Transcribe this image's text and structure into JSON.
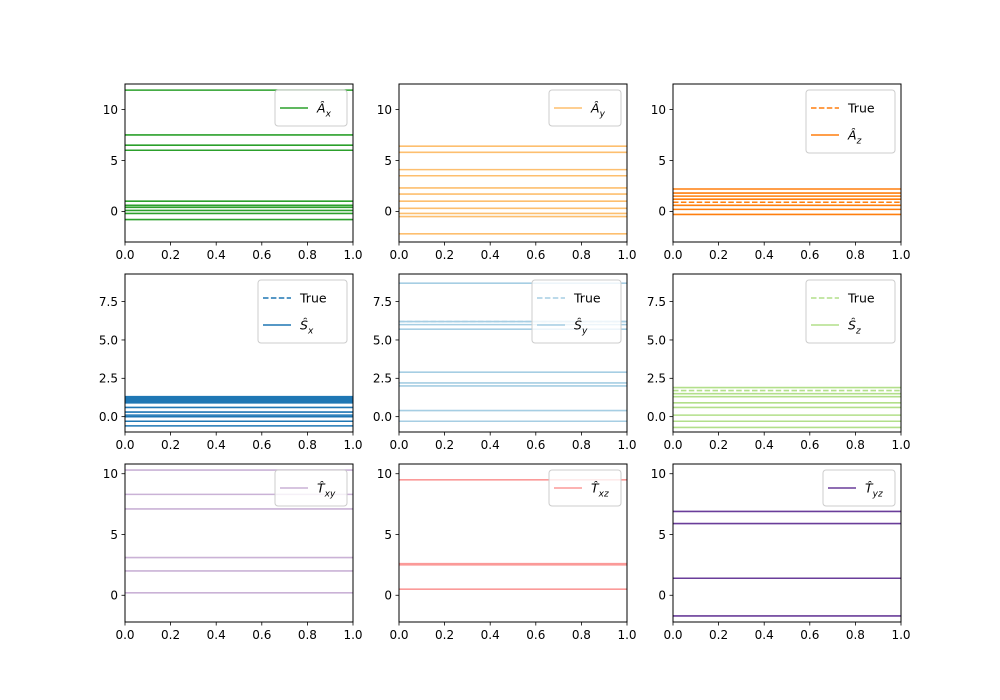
{
  "chart_data": [
    {
      "type": "line",
      "panel": "A_x",
      "xlim": [
        0.0,
        1.0
      ],
      "ylim": [
        -3.0,
        12.5
      ],
      "xticks": [
        "0.0",
        "0.2",
        "0.4",
        "0.6",
        "0.8",
        "1.0"
      ],
      "yticks": [
        "0",
        "5",
        "10"
      ],
      "ytick_values": [
        0,
        5,
        10
      ],
      "color": "#2ca02c",
      "legend": "top-right",
      "series": [
        {
          "name": "Â_x",
          "style": "solid",
          "values": [
            11.9,
            7.5,
            6.5,
            6.0,
            1.0,
            0.6,
            0.4,
            0.1,
            -0.2,
            -0.8
          ]
        }
      ]
    },
    {
      "type": "line",
      "panel": "A_y",
      "xlim": [
        0.0,
        1.0
      ],
      "ylim": [
        -3.0,
        12.5
      ],
      "xticks": [
        "0.0",
        "0.2",
        "0.4",
        "0.6",
        "0.8",
        "1.0"
      ],
      "yticks": [
        "0",
        "5",
        "10"
      ],
      "ytick_values": [
        0,
        5,
        10
      ],
      "color": "#fdbf6f",
      "legend": "top-right",
      "series": [
        {
          "name": "Â_y",
          "style": "solid",
          "values": [
            6.4,
            5.8,
            4.1,
            3.5,
            2.3,
            1.7,
            1.0,
            0.3,
            -0.2,
            -0.5,
            -2.2
          ]
        }
      ]
    },
    {
      "type": "line",
      "panel": "A_z",
      "xlim": [
        0.0,
        1.0
      ],
      "ylim": [
        -3.0,
        12.5
      ],
      "xticks": [
        "0.0",
        "0.2",
        "0.4",
        "0.6",
        "0.8",
        "1.0"
      ],
      "yticks": [
        "0",
        "5",
        "10"
      ],
      "ytick_values": [
        0,
        5,
        10
      ],
      "color": "#ff7f0e",
      "legend": "top-right",
      "series": [
        {
          "name": "True",
          "style": "dashed",
          "values": [
            0.9
          ]
        },
        {
          "name": "Â_z",
          "style": "solid",
          "values": [
            2.2,
            1.8,
            1.5,
            1.2,
            0.6,
            0.2,
            -0.3
          ]
        }
      ]
    },
    {
      "type": "line",
      "panel": "S_x",
      "xlim": [
        0.0,
        1.0
      ],
      "ylim": [
        -1.0,
        9.3
      ],
      "xticks": [
        "0.0",
        "0.2",
        "0.4",
        "0.6",
        "0.8",
        "1.0"
      ],
      "yticks": [
        "0.0",
        "2.5",
        "5.0",
        "7.5"
      ],
      "ytick_values": [
        0,
        2.5,
        5,
        7.5
      ],
      "color": "#1f77b4",
      "legend": "top-right",
      "series": [
        {
          "name": "True",
          "style": "dashed",
          "values": [
            1.0
          ]
        },
        {
          "name": "Ŝ_x",
          "style": "solid",
          "values": [
            1.3,
            1.2,
            1.1,
            1.0,
            0.9,
            0.6,
            0.3,
            0.1,
            0.0,
            -0.3,
            -0.6
          ]
        }
      ]
    },
    {
      "type": "line",
      "panel": "S_y",
      "xlim": [
        0.0,
        1.0
      ],
      "ylim": [
        -1.0,
        9.3
      ],
      "xticks": [
        "0.0",
        "0.2",
        "0.4",
        "0.6",
        "0.8",
        "1.0"
      ],
      "yticks": [
        "0.0",
        "2.5",
        "5.0",
        "7.5"
      ],
      "ytick_values": [
        0,
        2.5,
        5,
        7.5
      ],
      "color": "#a6cee3",
      "legend": "top-right",
      "series": [
        {
          "name": "True",
          "style": "dashed",
          "values": [
            6.2
          ]
        },
        {
          "name": "Ŝ_y",
          "style": "solid",
          "values": [
            8.7,
            6.2,
            6.0,
            5.7,
            2.9,
            2.2,
            2.0,
            0.4,
            -0.3
          ]
        }
      ]
    },
    {
      "type": "line",
      "panel": "S_z",
      "xlim": [
        0.0,
        1.0
      ],
      "ylim": [
        -1.0,
        9.3
      ],
      "xticks": [
        "0.0",
        "0.2",
        "0.4",
        "0.6",
        "0.8",
        "1.0"
      ],
      "yticks": [
        "0.0",
        "2.5",
        "5.0",
        "7.5"
      ],
      "ytick_values": [
        0,
        2.5,
        5,
        7.5
      ],
      "color": "#b2df8a",
      "legend": "top-right",
      "series": [
        {
          "name": "True",
          "style": "dashed",
          "values": [
            1.7
          ]
        },
        {
          "name": "Ŝ_z",
          "style": "solid",
          "values": [
            1.9,
            1.5,
            1.3,
            0.9,
            0.6,
            0.1,
            -0.3,
            -0.7
          ]
        }
      ]
    },
    {
      "type": "line",
      "panel": "T_xy",
      "xlim": [
        0.0,
        1.0
      ],
      "ylim": [
        -2.2,
        10.8
      ],
      "xticks": [
        "0.0",
        "0.2",
        "0.4",
        "0.6",
        "0.8",
        "1.0"
      ],
      "yticks": [
        "0",
        "5",
        "10"
      ],
      "ytick_values": [
        0,
        5,
        10
      ],
      "color": "#cab2d6",
      "legend": "top-right",
      "series": [
        {
          "name": "T̂_xy",
          "style": "solid",
          "values": [
            10.3,
            8.3,
            7.1,
            3.1,
            2.0,
            0.2
          ]
        }
      ]
    },
    {
      "type": "line",
      "panel": "T_xz",
      "xlim": [
        0.0,
        1.0
      ],
      "ylim": [
        -2.2,
        10.8
      ],
      "xticks": [
        "0.0",
        "0.2",
        "0.4",
        "0.6",
        "0.8",
        "1.0"
      ],
      "yticks": [
        "0",
        "5",
        "10"
      ],
      "ytick_values": [
        0,
        5,
        10
      ],
      "color": "#fb9a99",
      "legend": "top-right",
      "series": [
        {
          "name": "T̂_xz",
          "style": "solid",
          "values": [
            9.5,
            2.6,
            2.5,
            0.5
          ]
        }
      ]
    },
    {
      "type": "line",
      "panel": "T_yz",
      "xlim": [
        0.0,
        1.0
      ],
      "ylim": [
        -2.2,
        10.8
      ],
      "xticks": [
        "0.0",
        "0.2",
        "0.4",
        "0.6",
        "0.8",
        "1.0"
      ],
      "yticks": [
        "0",
        "5",
        "10"
      ],
      "ytick_values": [
        0,
        5,
        10
      ],
      "color": "#6a3d9a",
      "legend": "top-right",
      "series": [
        {
          "name": "T̂_yz",
          "style": "solid",
          "values": [
            6.9,
            5.9,
            1.4,
            -1.7
          ]
        }
      ]
    }
  ]
}
